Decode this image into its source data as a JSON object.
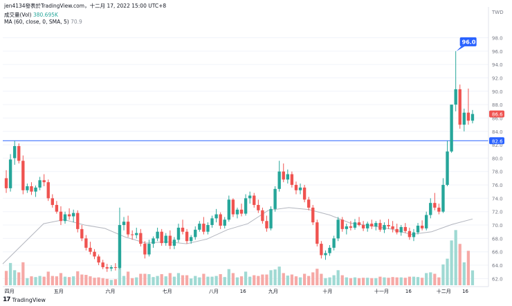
{
  "header": {
    "title": "jen4134發表於TradingView.com，十二月 17, 2022 15:00 UTC+8",
    "volume_label": "成交量(Vol)",
    "volume_value": "380.695K",
    "ma_label": "MA (60, close, 0, SMA, 5)",
    "ma_value": "70.9"
  },
  "brand": {
    "text": "TradingView"
  },
  "colors": {
    "up": "#26a69a",
    "down": "#ef5350",
    "ma": "#b2b5be",
    "hline": "#2962ff",
    "vol_up": "#9fd9d3",
    "vol_down": "#f6a9a6"
  },
  "chart_data": {
    "type": "candlestick",
    "currency": "TWD",
    "y_ticks": [
      62.0,
      64.0,
      66.0,
      68.0,
      70.0,
      72.0,
      74.0,
      76.0,
      78.0,
      80.0,
      82.0,
      84.0,
      86.0,
      88.0,
      90.0,
      92.0,
      94.0,
      96.0,
      98.0
    ],
    "ylim": [
      61.0,
      99.5
    ],
    "x_ticks": [
      "四月",
      "五月",
      "六月",
      "七月",
      "八月",
      "16",
      "九月",
      "十月",
      "十一月",
      "16",
      "十二月",
      "16"
    ],
    "horizontal_line": {
      "value": 82.6,
      "label": "82.6"
    },
    "last_price": {
      "value": 86.6,
      "label": "86.6"
    },
    "high_marker": {
      "value": 96.0,
      "label": "96.0"
    },
    "series": [
      {
        "o": 77.0,
        "h": 78.2,
        "l": 74.8,
        "c": 75.5
      },
      {
        "o": 75.5,
        "h": 80.6,
        "l": 75.0,
        "c": 79.8
      },
      {
        "o": 80.0,
        "h": 82.6,
        "l": 79.0,
        "c": 81.8
      },
      {
        "o": 81.8,
        "h": 82.2,
        "l": 79.2,
        "c": 79.6
      },
      {
        "o": 79.6,
        "h": 80.4,
        "l": 74.6,
        "c": 75.2
      },
      {
        "o": 75.2,
        "h": 76.2,
        "l": 74.8,
        "c": 75.8
      },
      {
        "o": 75.8,
        "h": 76.4,
        "l": 74.5,
        "c": 75.0
      },
      {
        "o": 75.0,
        "h": 75.9,
        "l": 74.2,
        "c": 75.6
      },
      {
        "o": 75.6,
        "h": 77.2,
        "l": 75.2,
        "c": 76.7
      },
      {
        "o": 76.7,
        "h": 77.6,
        "l": 75.8,
        "c": 76.4
      },
      {
        "o": 76.4,
        "h": 76.8,
        "l": 73.6,
        "c": 74.0
      },
      {
        "o": 74.0,
        "h": 74.6,
        "l": 72.6,
        "c": 73.0
      },
      {
        "o": 73.0,
        "h": 73.6,
        "l": 71.7,
        "c": 72.0
      },
      {
        "o": 72.0,
        "h": 72.8,
        "l": 70.0,
        "c": 70.6
      },
      {
        "o": 70.6,
        "h": 72.0,
        "l": 70.2,
        "c": 71.6
      },
      {
        "o": 71.6,
        "h": 72.5,
        "l": 70.8,
        "c": 71.3
      },
      {
        "o": 71.3,
        "h": 72.3,
        "l": 70.4,
        "c": 71.8
      },
      {
        "o": 71.8,
        "h": 72.2,
        "l": 68.9,
        "c": 69.4
      },
      {
        "o": 69.4,
        "h": 70.0,
        "l": 67.6,
        "c": 68.0
      },
      {
        "o": 68.0,
        "h": 68.5,
        "l": 66.2,
        "c": 66.6
      },
      {
        "o": 66.6,
        "h": 67.5,
        "l": 65.6,
        "c": 66.0
      },
      {
        "o": 66.0,
        "h": 66.4,
        "l": 64.9,
        "c": 65.3
      },
      {
        "o": 65.3,
        "h": 65.6,
        "l": 64.0,
        "c": 64.4
      },
      {
        "o": 64.4,
        "h": 64.8,
        "l": 63.4,
        "c": 63.7
      },
      {
        "o": 63.7,
        "h": 64.2,
        "l": 63.0,
        "c": 63.5
      },
      {
        "o": 63.5,
        "h": 64.0,
        "l": 63.1,
        "c": 63.7
      },
      {
        "o": 63.7,
        "h": 64.3,
        "l": 63.2,
        "c": 63.6
      },
      {
        "o": 63.6,
        "h": 72.6,
        "l": 63.4,
        "c": 70.0
      },
      {
        "o": 70.0,
        "h": 71.2,
        "l": 69.2,
        "c": 70.5
      },
      {
        "o": 70.5,
        "h": 71.4,
        "l": 68.2,
        "c": 68.6
      },
      {
        "o": 68.6,
        "h": 69.2,
        "l": 67.8,
        "c": 68.5
      },
      {
        "o": 68.5,
        "h": 69.6,
        "l": 68.0,
        "c": 68.8
      },
      {
        "o": 68.8,
        "h": 69.4,
        "l": 66.8,
        "c": 67.2
      },
      {
        "o": 67.2,
        "h": 67.6,
        "l": 65.0,
        "c": 65.6
      },
      {
        "o": 65.6,
        "h": 67.8,
        "l": 65.3,
        "c": 67.2
      },
      {
        "o": 67.2,
        "h": 68.3,
        "l": 66.6,
        "c": 68.0
      },
      {
        "o": 68.0,
        "h": 69.6,
        "l": 67.6,
        "c": 69.0
      },
      {
        "o": 69.0,
        "h": 69.4,
        "l": 66.9,
        "c": 67.3
      },
      {
        "o": 67.3,
        "h": 68.8,
        "l": 66.9,
        "c": 68.4
      },
      {
        "o": 68.4,
        "h": 69.2,
        "l": 66.4,
        "c": 66.9
      },
      {
        "o": 66.9,
        "h": 68.2,
        "l": 66.4,
        "c": 67.8
      },
      {
        "o": 67.8,
        "h": 70.2,
        "l": 67.4,
        "c": 69.6
      },
      {
        "o": 69.6,
        "h": 70.8,
        "l": 68.6,
        "c": 69.0
      },
      {
        "o": 69.0,
        "h": 69.4,
        "l": 67.2,
        "c": 67.6
      },
      {
        "o": 67.6,
        "h": 68.5,
        "l": 67.2,
        "c": 68.2
      },
      {
        "o": 68.2,
        "h": 69.8,
        "l": 67.8,
        "c": 69.3
      },
      {
        "o": 69.3,
        "h": 70.6,
        "l": 69.0,
        "c": 70.2
      },
      {
        "o": 70.2,
        "h": 71.2,
        "l": 68.6,
        "c": 69.0
      },
      {
        "o": 69.0,
        "h": 70.4,
        "l": 68.6,
        "c": 70.0
      },
      {
        "o": 70.0,
        "h": 71.4,
        "l": 69.6,
        "c": 71.0
      },
      {
        "o": 71.0,
        "h": 72.4,
        "l": 70.4,
        "c": 71.6
      },
      {
        "o": 71.6,
        "h": 71.9,
        "l": 69.4,
        "c": 69.9
      },
      {
        "o": 69.9,
        "h": 71.2,
        "l": 69.5,
        "c": 70.8
      },
      {
        "o": 70.8,
        "h": 74.4,
        "l": 70.5,
        "c": 73.8
      },
      {
        "o": 73.8,
        "h": 74.0,
        "l": 71.2,
        "c": 71.6
      },
      {
        "o": 71.6,
        "h": 72.6,
        "l": 71.0,
        "c": 72.3
      },
      {
        "o": 72.3,
        "h": 73.2,
        "l": 71.3,
        "c": 71.7
      },
      {
        "o": 71.7,
        "h": 74.6,
        "l": 71.4,
        "c": 74.0
      },
      {
        "o": 74.0,
        "h": 75.0,
        "l": 73.2,
        "c": 74.4
      },
      {
        "o": 74.4,
        "h": 74.8,
        "l": 72.6,
        "c": 73.0
      },
      {
        "o": 73.0,
        "h": 73.8,
        "l": 71.8,
        "c": 72.2
      },
      {
        "o": 72.2,
        "h": 72.6,
        "l": 70.2,
        "c": 70.6
      },
      {
        "o": 70.6,
        "h": 71.4,
        "l": 69.0,
        "c": 69.5
      },
      {
        "o": 69.5,
        "h": 72.8,
        "l": 69.2,
        "c": 72.4
      },
      {
        "o": 72.4,
        "h": 75.8,
        "l": 72.0,
        "c": 75.4
      },
      {
        "o": 75.4,
        "h": 79.6,
        "l": 75.0,
        "c": 78.0
      },
      {
        "o": 78.0,
        "h": 79.2,
        "l": 76.4,
        "c": 76.8
      },
      {
        "o": 76.8,
        "h": 78.3,
        "l": 76.2,
        "c": 77.6
      },
      {
        "o": 77.6,
        "h": 78.0,
        "l": 75.6,
        "c": 76.0
      },
      {
        "o": 76.0,
        "h": 76.5,
        "l": 74.6,
        "c": 75.2
      },
      {
        "o": 75.2,
        "h": 76.2,
        "l": 74.6,
        "c": 75.6
      },
      {
        "o": 75.6,
        "h": 76.0,
        "l": 73.4,
        "c": 73.8
      },
      {
        "o": 73.8,
        "h": 74.2,
        "l": 72.2,
        "c": 72.6
      },
      {
        "o": 72.6,
        "h": 73.0,
        "l": 70.0,
        "c": 70.4
      },
      {
        "o": 70.4,
        "h": 70.8,
        "l": 66.8,
        "c": 67.2
      },
      {
        "o": 67.2,
        "h": 67.6,
        "l": 65.0,
        "c": 65.5
      },
      {
        "o": 65.5,
        "h": 66.2,
        "l": 64.8,
        "c": 65.8
      },
      {
        "o": 65.8,
        "h": 67.0,
        "l": 65.4,
        "c": 66.6
      },
      {
        "o": 66.6,
        "h": 68.4,
        "l": 66.2,
        "c": 68.0
      },
      {
        "o": 68.0,
        "h": 71.2,
        "l": 67.6,
        "c": 70.8
      },
      {
        "o": 70.8,
        "h": 71.2,
        "l": 69.0,
        "c": 69.4
      },
      {
        "o": 69.4,
        "h": 70.2,
        "l": 68.6,
        "c": 69.8
      },
      {
        "o": 69.8,
        "h": 70.6,
        "l": 69.2,
        "c": 69.6
      },
      {
        "o": 69.6,
        "h": 70.9,
        "l": 69.3,
        "c": 70.4
      },
      {
        "o": 70.4,
        "h": 71.2,
        "l": 69.8,
        "c": 70.0
      },
      {
        "o": 70.0,
        "h": 70.6,
        "l": 69.1,
        "c": 69.5
      },
      {
        "o": 69.5,
        "h": 70.5,
        "l": 69.0,
        "c": 70.2
      },
      {
        "o": 70.2,
        "h": 70.8,
        "l": 69.4,
        "c": 69.8
      },
      {
        "o": 69.8,
        "h": 70.6,
        "l": 69.2,
        "c": 70.3
      },
      {
        "o": 70.3,
        "h": 70.8,
        "l": 69.0,
        "c": 69.3
      },
      {
        "o": 69.3,
        "h": 70.4,
        "l": 68.8,
        "c": 70.0
      },
      {
        "o": 70.0,
        "h": 70.9,
        "l": 69.4,
        "c": 69.8
      },
      {
        "o": 69.8,
        "h": 70.6,
        "l": 68.9,
        "c": 69.4
      },
      {
        "o": 69.4,
        "h": 70.2,
        "l": 68.6,
        "c": 68.9
      },
      {
        "o": 68.9,
        "h": 70.0,
        "l": 68.4,
        "c": 69.7
      },
      {
        "o": 69.7,
        "h": 70.3,
        "l": 68.8,
        "c": 69.1
      },
      {
        "o": 69.1,
        "h": 69.6,
        "l": 67.8,
        "c": 68.2
      },
      {
        "o": 68.2,
        "h": 69.4,
        "l": 67.6,
        "c": 68.9
      },
      {
        "o": 68.9,
        "h": 70.3,
        "l": 68.6,
        "c": 69.9
      },
      {
        "o": 69.9,
        "h": 70.7,
        "l": 69.2,
        "c": 69.5
      },
      {
        "o": 69.5,
        "h": 72.0,
        "l": 69.2,
        "c": 71.5
      },
      {
        "o": 71.5,
        "h": 74.0,
        "l": 71.0,
        "c": 73.3
      },
      {
        "o": 73.3,
        "h": 74.8,
        "l": 72.2,
        "c": 72.6
      },
      {
        "o": 72.6,
        "h": 73.2,
        "l": 71.6,
        "c": 72.0
      },
      {
        "o": 72.0,
        "h": 77.0,
        "l": 71.8,
        "c": 76.0
      },
      {
        "o": 76.0,
        "h": 82.6,
        "l": 75.8,
        "c": 81.0
      },
      {
        "o": 81.0,
        "h": 88.0,
        "l": 80.8,
        "c": 88.0
      },
      {
        "o": 88.0,
        "h": 96.0,
        "l": 87.0,
        "c": 90.3
      },
      {
        "o": 90.3,
        "h": 91.0,
        "l": 84.4,
        "c": 85.0
      },
      {
        "o": 85.0,
        "h": 87.4,
        "l": 84.0,
        "c": 86.8
      },
      {
        "o": 86.8,
        "h": 90.4,
        "l": 85.0,
        "c": 85.6
      },
      {
        "o": 85.6,
        "h": 87.2,
        "l": 85.2,
        "c": 86.6
      }
    ],
    "volume_ma_levels": [
      64.2,
      67.2,
      70.2,
      70.8,
      70.0,
      69.5,
      68.2,
      67.3,
      67.5,
      67.2,
      67.9,
      69.3,
      70.2,
      72.2,
      72.6,
      72.3,
      71.5,
      70.3,
      69.9,
      69.4,
      68.6,
      69.0,
      70.1,
      70.9
    ]
  }
}
